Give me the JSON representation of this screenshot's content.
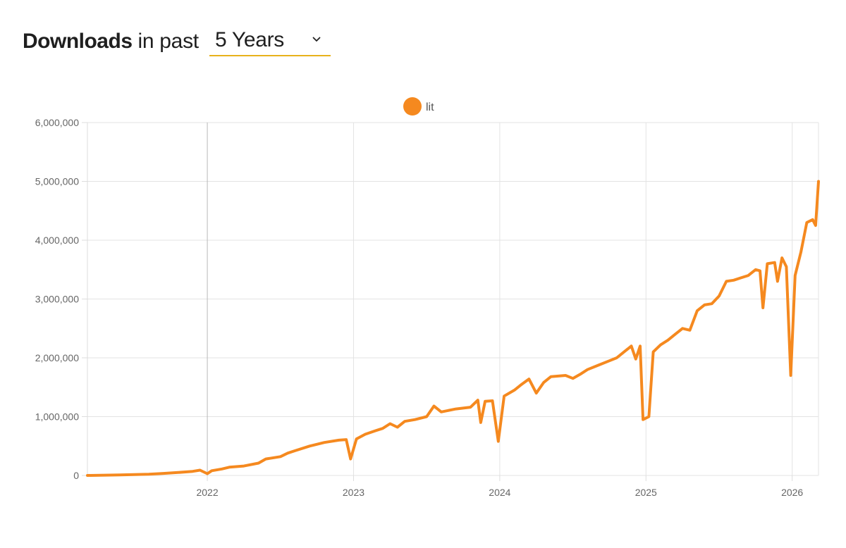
{
  "header": {
    "title": "Downloads",
    "suffix": "in past",
    "period_selected": "5 Years"
  },
  "chart_data": {
    "type": "line",
    "title": "",
    "xlabel": "",
    "ylabel": "",
    "x_unit": "year",
    "xlim": [
      2021.18,
      2026.18
    ],
    "ylim": [
      0,
      6000000
    ],
    "yticks": [
      0,
      1000000,
      2000000,
      3000000,
      4000000,
      5000000,
      6000000
    ],
    "ytick_labels": [
      "0",
      "1,000,000",
      "2,000,000",
      "3,000,000",
      "4,000,000",
      "5,000,000",
      "6,000,000"
    ],
    "xticks": [
      2022,
      2023,
      2024,
      2025,
      2026
    ],
    "xtick_labels": [
      "2022",
      "2023",
      "2024",
      "2025",
      "2026"
    ],
    "grid": true,
    "legend": "top-center",
    "series": [
      {
        "name": "lit",
        "color": "#f5891f",
        "points": [
          [
            2021.18,
            0
          ],
          [
            2021.3,
            5000
          ],
          [
            2021.4,
            10000
          ],
          [
            2021.5,
            15000
          ],
          [
            2021.6,
            20000
          ],
          [
            2021.7,
            35000
          ],
          [
            2021.8,
            50000
          ],
          [
            2021.9,
            70000
          ],
          [
            2021.95,
            90000
          ],
          [
            2022.0,
            30000
          ],
          [
            2022.03,
            80000
          ],
          [
            2022.1,
            110000
          ],
          [
            2022.15,
            140000
          ],
          [
            2022.25,
            160000
          ],
          [
            2022.35,
            210000
          ],
          [
            2022.4,
            280000
          ],
          [
            2022.5,
            320000
          ],
          [
            2022.55,
            380000
          ],
          [
            2022.6,
            420000
          ],
          [
            2022.7,
            500000
          ],
          [
            2022.8,
            560000
          ],
          [
            2022.9,
            600000
          ],
          [
            2022.95,
            610000
          ],
          [
            2022.98,
            280000
          ],
          [
            2023.02,
            620000
          ],
          [
            2023.08,
            700000
          ],
          [
            2023.15,
            760000
          ],
          [
            2023.2,
            800000
          ],
          [
            2023.25,
            880000
          ],
          [
            2023.3,
            820000
          ],
          [
            2023.35,
            920000
          ],
          [
            2023.42,
            950000
          ],
          [
            2023.5,
            1000000
          ],
          [
            2023.55,
            1180000
          ],
          [
            2023.6,
            1080000
          ],
          [
            2023.7,
            1130000
          ],
          [
            2023.8,
            1160000
          ],
          [
            2023.85,
            1280000
          ],
          [
            2023.87,
            900000
          ],
          [
            2023.9,
            1260000
          ],
          [
            2023.95,
            1270000
          ],
          [
            2023.99,
            580000
          ],
          [
            2024.03,
            1350000
          ],
          [
            2024.1,
            1450000
          ],
          [
            2024.15,
            1550000
          ],
          [
            2024.2,
            1640000
          ],
          [
            2024.25,
            1400000
          ],
          [
            2024.3,
            1580000
          ],
          [
            2024.35,
            1680000
          ],
          [
            2024.45,
            1700000
          ],
          [
            2024.5,
            1650000
          ],
          [
            2024.55,
            1720000
          ],
          [
            2024.6,
            1800000
          ],
          [
            2024.68,
            1880000
          ],
          [
            2024.75,
            1950000
          ],
          [
            2024.8,
            2000000
          ],
          [
            2024.85,
            2100000
          ],
          [
            2024.9,
            2200000
          ],
          [
            2024.93,
            1980000
          ],
          [
            2024.96,
            2200000
          ],
          [
            2024.98,
            950000
          ],
          [
            2025.02,
            1000000
          ],
          [
            2025.05,
            2100000
          ],
          [
            2025.1,
            2220000
          ],
          [
            2025.15,
            2300000
          ],
          [
            2025.2,
            2400000
          ],
          [
            2025.25,
            2500000
          ],
          [
            2025.3,
            2470000
          ],
          [
            2025.35,
            2800000
          ],
          [
            2025.4,
            2900000
          ],
          [
            2025.45,
            2920000
          ],
          [
            2025.5,
            3050000
          ],
          [
            2025.55,
            3300000
          ],
          [
            2025.6,
            3320000
          ],
          [
            2025.65,
            3360000
          ],
          [
            2025.7,
            3400000
          ],
          [
            2025.75,
            3500000
          ],
          [
            2025.78,
            3480000
          ],
          [
            2025.8,
            2850000
          ],
          [
            2025.83,
            3600000
          ],
          [
            2025.88,
            3620000
          ],
          [
            2025.9,
            3300000
          ],
          [
            2025.93,
            3700000
          ],
          [
            2025.96,
            3550000
          ],
          [
            2025.99,
            1700000
          ],
          [
            2026.02,
            3400000
          ],
          [
            2026.06,
            3800000
          ],
          [
            2026.1,
            4300000
          ],
          [
            2026.14,
            4350000
          ],
          [
            2026.16,
            4250000
          ],
          [
            2026.18,
            5000000
          ]
        ]
      }
    ]
  }
}
